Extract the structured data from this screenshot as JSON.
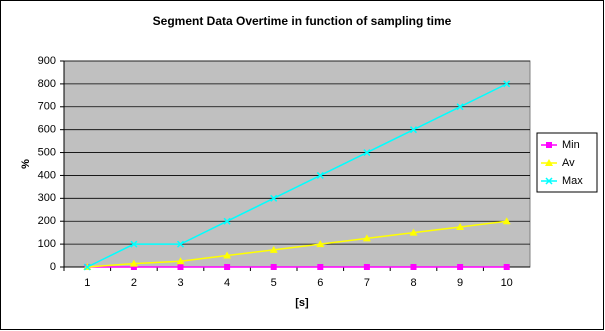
{
  "chart_data": {
    "type": "line",
    "title": "Segment Data Overtime in function  of sampling time",
    "x_label": "[s]",
    "y_label": "%",
    "categories": [
      "1",
      "2",
      "3",
      "4",
      "5",
      "6",
      "7",
      "8",
      "9",
      "10"
    ],
    "series": [
      {
        "name": "Min",
        "color": "#ff00ff",
        "marker": "square",
        "values": [
          0,
          0,
          0,
          0,
          0,
          0,
          0,
          0,
          0,
          0
        ]
      },
      {
        "name": "Av",
        "color": "#ffff00",
        "marker": "triangle",
        "values": [
          0,
          15,
          25,
          50,
          75,
          100,
          125,
          150,
          175,
          200
        ]
      },
      {
        "name": "Max",
        "color": "#00ffff",
        "marker": "x",
        "values": [
          0,
          100,
          100,
          200,
          300,
          400,
          500,
          600,
          700,
          800
        ]
      }
    ],
    "ylim": [
      0,
      900
    ],
    "yticks": [
      0,
      100,
      200,
      300,
      400,
      500,
      600,
      700,
      800,
      900
    ],
    "grid": true,
    "legend": "right",
    "plot_background": "#c0c0c0"
  }
}
